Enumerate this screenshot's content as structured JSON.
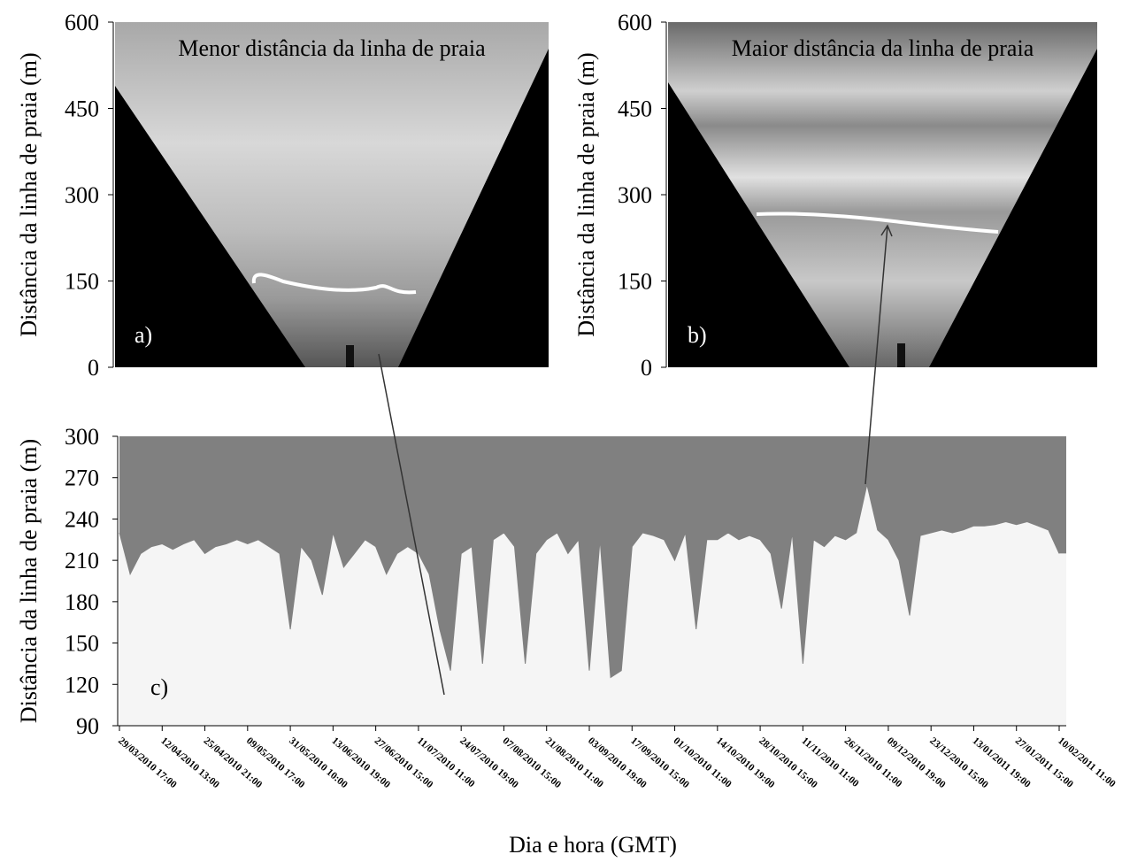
{
  "chart_data": [
    {
      "type": "image",
      "title": "Menor distância da linha de praia",
      "panel_label": "a)",
      "ylabel": "Distância da linha de praia (m)",
      "ylim": [
        0,
        600
      ],
      "yticks": [
        0,
        150,
        300,
        450,
        600
      ]
    },
    {
      "type": "image",
      "title": "Maior distância da linha de praia",
      "panel_label": "b)",
      "ylabel": "Distância da linha de praia (m)",
      "ylim": [
        0,
        600
      ],
      "yticks": [
        0,
        150,
        300,
        450,
        600
      ]
    },
    {
      "type": "area",
      "panel_label": "c)",
      "ylabel": "Distância da linha de praia (m)",
      "xlabel": "Dia e hora (GMT)",
      "ylim": [
        90,
        300
      ],
      "yticks": [
        90,
        120,
        150,
        180,
        210,
        240,
        270,
        300
      ],
      "categories": [
        "29/03/2010 17:00",
        null,
        null,
        null,
        "12/04/2010 13:00",
        null,
        null,
        null,
        "25/04/2010 21:00",
        null,
        null,
        null,
        "09/05/2010 17:00",
        null,
        null,
        null,
        "31/05/2010 10:00",
        null,
        null,
        null,
        "13/06/2010 19:00",
        null,
        null,
        null,
        "27/06/2010 15:00",
        null,
        null,
        null,
        "11/07/2010 11:00",
        null,
        null,
        null,
        "24/07/2010 19:00",
        null,
        null,
        null,
        "07/08/2010 15:00",
        null,
        null,
        null,
        "21/08/2010 11:00",
        null,
        null,
        null,
        "03/09/2010 19:00",
        null,
        null,
        null,
        "17/09/2010 15:00",
        null,
        null,
        null,
        "01/10/2010 11:00",
        null,
        null,
        null,
        "14/10/2010 19:00",
        null,
        null,
        null,
        "28/10/2010 15:00",
        null,
        null,
        null,
        "11/11/2010 11:00",
        null,
        null,
        null,
        "26/11/2010 11:00",
        null,
        null,
        null,
        "09/12/2010 19:00",
        null,
        null,
        null,
        "23/12/2010 15:00",
        null,
        null,
        null,
        "13/01/2011 19:00",
        null,
        null,
        null,
        "27/01/2011 15:00",
        null,
        null,
        null,
        "10/02/2011 11:00"
      ],
      "values": [
        230,
        200,
        215,
        220,
        222,
        218,
        222,
        225,
        215,
        220,
        222,
        225,
        222,
        225,
        220,
        215,
        160,
        220,
        210,
        185,
        230,
        205,
        215,
        225,
        220,
        200,
        215,
        220,
        215,
        200,
        160,
        130,
        215,
        220,
        135,
        225,
        230,
        220,
        135,
        215,
        225,
        230,
        215,
        225,
        130,
        225,
        125,
        130,
        220,
        230,
        228,
        225,
        210,
        230,
        160,
        225,
        225,
        230,
        225,
        228,
        225,
        215,
        175,
        230,
        135,
        225,
        220,
        228,
        225,
        230,
        265,
        232,
        225,
        210,
        170,
        228,
        230,
        232,
        230,
        232,
        235,
        235,
        236,
        238,
        236,
        238,
        235,
        232,
        215
      ],
      "color": "#808080"
    }
  ]
}
